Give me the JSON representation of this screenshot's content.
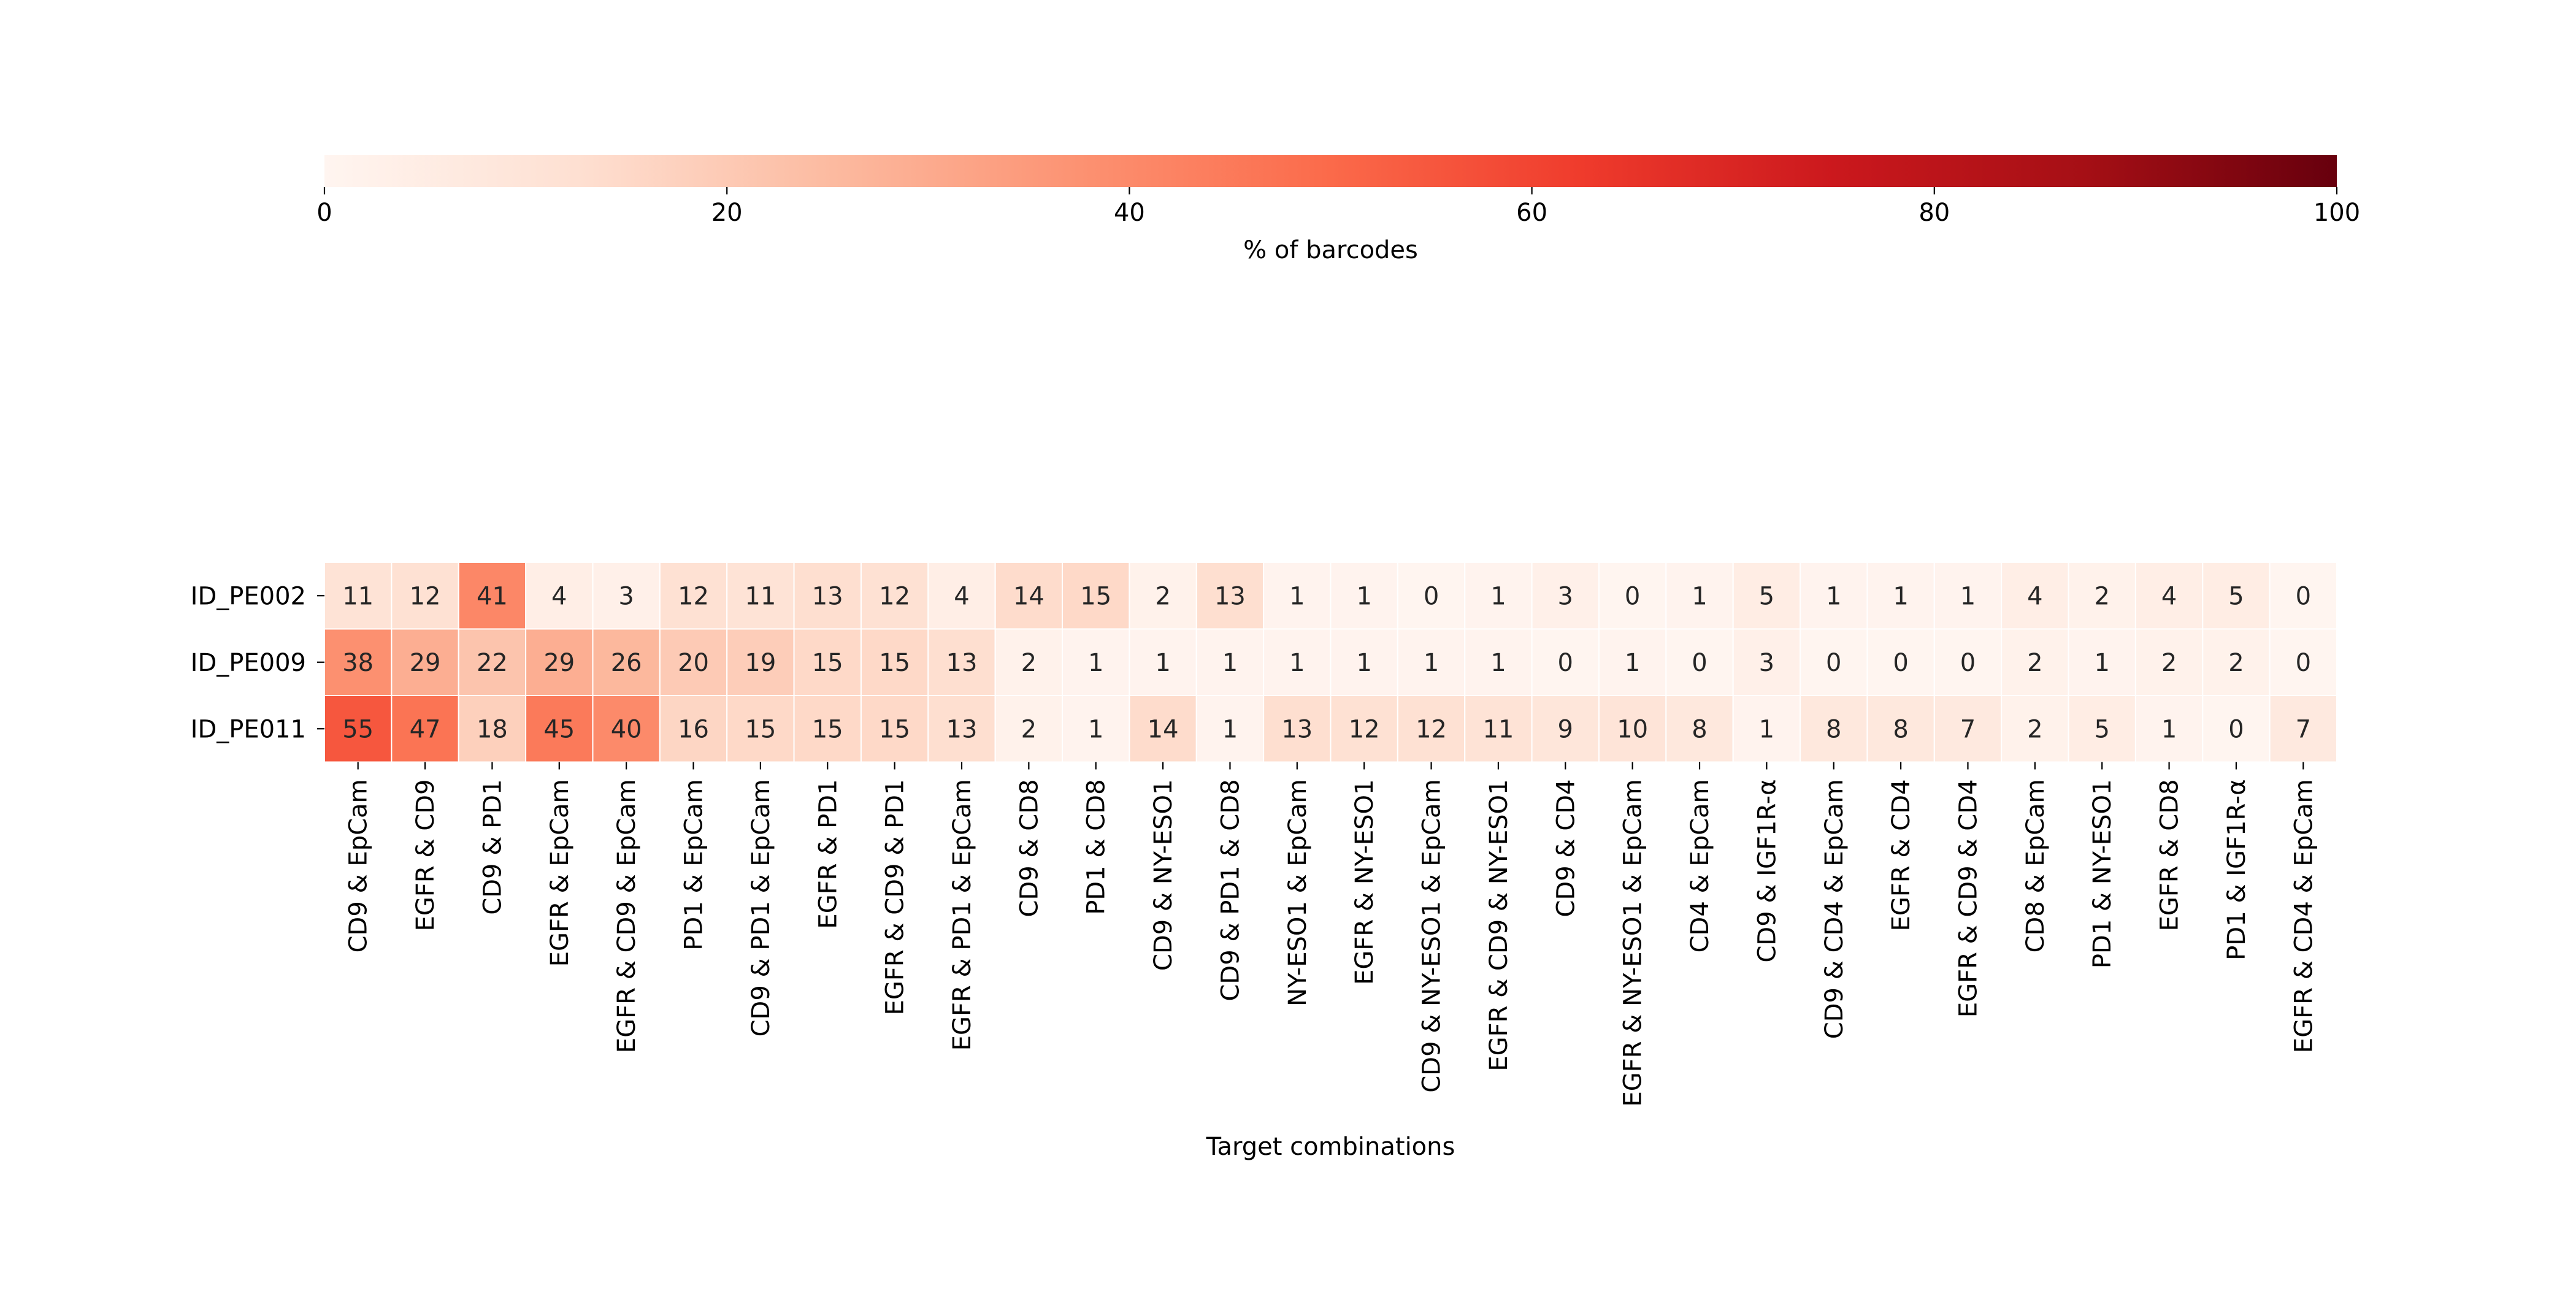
{
  "chart_data": {
    "type": "heatmap",
    "title": "",
    "xlabel": "Target combinations",
    "ylabel": "",
    "rows": [
      "ID_PE002",
      "ID_PE009",
      "ID_PE011"
    ],
    "columns": [
      "CD9 & EpCam",
      "EGFR & CD9",
      "CD9 & PD1",
      "EGFR & EpCam",
      "EGFR & CD9 & EpCam",
      "PD1 & EpCam",
      "CD9 & PD1 & EpCam",
      "EGFR & PD1",
      "EGFR & CD9 & PD1",
      "EGFR & PD1 & EpCam",
      "CD9 & CD8",
      "PD1 & CD8",
      "CD9 & NY-ESO1",
      "CD9 & PD1 & CD8",
      "NY-ESO1 & EpCam",
      "EGFR & NY-ESO1",
      "CD9 & NY-ESO1 & EpCam",
      "EGFR & CD9 & NY-ESO1",
      "CD9 & CD4",
      "EGFR & NY-ESO1 & EpCam",
      "CD4 & EpCam",
      "CD9 & IGF1R-α",
      "CD9 & CD4 & EpCam",
      "EGFR & CD4",
      "EGFR & CD9 & CD4",
      "CD8 & EpCam",
      "PD1 & NY-ESO1",
      "EGFR & CD8",
      "PD1 & IGF1R-α",
      "EGFR & CD4 & EpCam"
    ],
    "values": [
      [
        11,
        12,
        41,
        4,
        3,
        12,
        11,
        13,
        12,
        4,
        14,
        15,
        2,
        13,
        1,
        1,
        0,
        1,
        3,
        0,
        1,
        5,
        1,
        1,
        1,
        4,
        2,
        4,
        5,
        0
      ],
      [
        38,
        29,
        22,
        29,
        26,
        20,
        19,
        15,
        15,
        13,
        2,
        1,
        1,
        1,
        1,
        1,
        1,
        1,
        0,
        1,
        0,
        3,
        0,
        0,
        0,
        2,
        1,
        2,
        2,
        0
      ],
      [
        55,
        47,
        18,
        45,
        40,
        16,
        15,
        15,
        15,
        13,
        2,
        1,
        14,
        1,
        13,
        12,
        12,
        11,
        9,
        10,
        8,
        1,
        8,
        8,
        7,
        2,
        5,
        1,
        0,
        7
      ]
    ],
    "colorbar": {
      "label": "% of barcodes",
      "range": [
        0,
        100
      ],
      "ticks": [
        0,
        20,
        40,
        60,
        80,
        100
      ],
      "colormap": "Reds",
      "orientation": "horizontal",
      "position": "top"
    },
    "annotation_text_colors": {
      "dark": "#262626",
      "light": "#ffffff"
    }
  }
}
